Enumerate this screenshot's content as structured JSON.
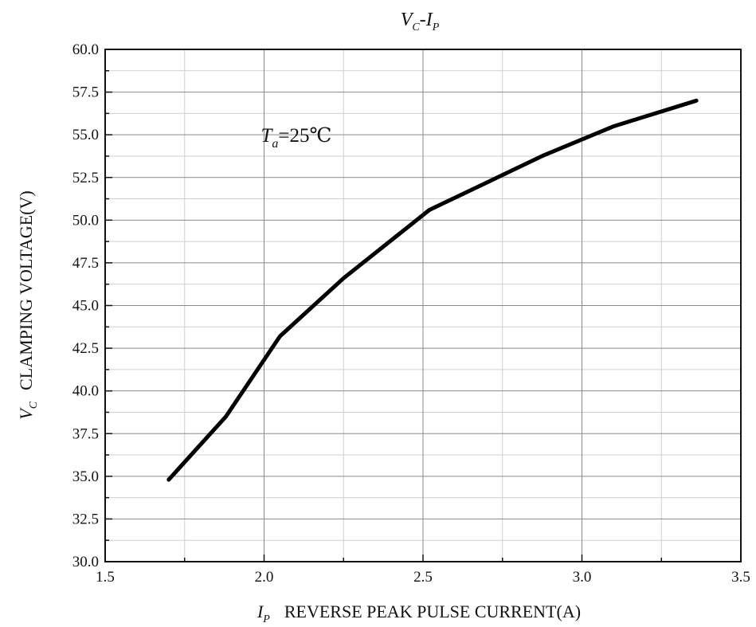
{
  "chart_data": {
    "type": "line",
    "title": {
      "main": "V",
      "main_sub": "C",
      "sep": "-I",
      "sep_sub": "P"
    },
    "xlabel": {
      "symbol": "I",
      "symbol_sub": "P",
      "text": "REVERSE PEAK PULSE CURRENT(A)"
    },
    "ylabel": {
      "symbol": "V",
      "symbol_sub": "C",
      "text": "CLAMPING VOLTAGE(V)"
    },
    "annotation": {
      "symbol": "T",
      "symbol_sub": "a",
      "text": "=25℃",
      "x": 1.99,
      "y": 55.0
    },
    "xlim": [
      1.5,
      3.5
    ],
    "ylim": [
      30.0,
      60.0
    ],
    "xticks": [
      "1.5",
      "2.0",
      "2.5",
      "3.0",
      "3.5"
    ],
    "yticks": [
      "30.0",
      "32.5",
      "35.0",
      "37.5",
      "40.0",
      "42.5",
      "45.0",
      "47.5",
      "50.0",
      "52.5",
      "55.0",
      "57.5",
      "60.0"
    ],
    "grid": true,
    "series": [
      {
        "x": [
          1.7,
          1.88,
          2.05,
          2.25,
          2.52,
          2.7,
          2.88,
          3.1,
          3.36
        ],
        "y": [
          34.8,
          38.5,
          43.2,
          46.6,
          50.6,
          52.2,
          53.8,
          55.5,
          57.0
        ]
      }
    ]
  }
}
